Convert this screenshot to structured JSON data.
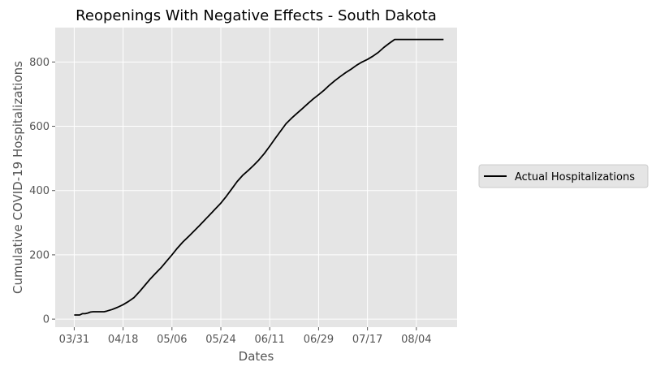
{
  "chart_data": {
    "type": "line",
    "title": "Reopenings With Negative Effects - South Dakota",
    "xlabel": "Dates",
    "ylabel": "Cumulative COVID-19 Hospitalizations",
    "x_ticks": [
      "03/31",
      "04/18",
      "05/06",
      "05/24",
      "06/11",
      "06/29",
      "07/17",
      "08/04"
    ],
    "y_ticks": [
      0,
      200,
      400,
      600,
      800
    ],
    "xlim": [
      "03/24",
      "08/19"
    ],
    "ylim": [
      -25,
      907
    ],
    "grid": true,
    "legend_position": "outside-right",
    "colors": {
      "background": "#e5e5e5",
      "grid": "#ffffff",
      "line": "#000000"
    },
    "series": [
      {
        "name": "Actual Hospitalizations",
        "x": [
          "03/31",
          "04/01",
          "04/02",
          "04/03",
          "04/04",
          "04/05",
          "04/06",
          "04/07",
          "04/09",
          "04/11",
          "04/12",
          "04/14",
          "04/16",
          "04/18",
          "04/20",
          "04/22",
          "04/24",
          "04/26",
          "04/28",
          "04/30",
          "05/02",
          "05/04",
          "05/06",
          "05/08",
          "05/10",
          "05/12",
          "05/14",
          "05/16",
          "05/18",
          "05/20",
          "05/22",
          "05/24",
          "05/26",
          "05/28",
          "05/30",
          "06/01",
          "06/03",
          "06/05",
          "06/07",
          "06/09",
          "06/11",
          "06/13",
          "06/15",
          "06/17",
          "06/19",
          "06/21",
          "06/23",
          "06/25",
          "06/27",
          "06/29",
          "07/01",
          "07/03",
          "07/05",
          "07/07",
          "07/09",
          "07/11",
          "07/13",
          "07/15",
          "07/17",
          "07/19",
          "07/21",
          "07/23",
          "07/25",
          "07/27",
          "07/29",
          "07/31",
          "08/02",
          "08/04",
          "08/06",
          "08/08",
          "08/10",
          "08/12",
          "08/14"
        ],
        "values": [
          13,
          13,
          13,
          17,
          17,
          19,
          22,
          23,
          23,
          23,
          25,
          30,
          37,
          45,
          55,
          67,
          85,
          105,
          125,
          143,
          160,
          180,
          200,
          221,
          240,
          256,
          273,
          290,
          308,
          325,
          343,
          361,
          382,
          405,
          428,
          447,
          462,
          478,
          495,
          515,
          538,
          562,
          585,
          608,
          625,
          640,
          655,
          670,
          685,
          698,
          712,
          728,
          742,
          755,
          767,
          778,
          790,
          800,
          808,
          818,
          830,
          845,
          858,
          870,
          870,
          870,
          870,
          870,
          870,
          870,
          870,
          870,
          870
        ]
      }
    ]
  }
}
